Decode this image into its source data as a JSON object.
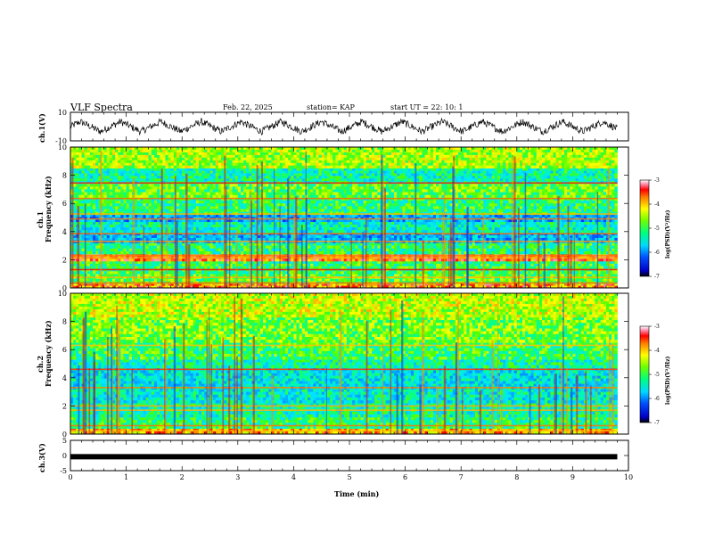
{
  "header": {
    "title": "VLF Spectra",
    "date": "Feb. 22, 2025",
    "station": "station= KAP",
    "start_ut": "start  UT =   22: 10: 1"
  },
  "colors": {
    "line": "#000000",
    "background": "#ffffff"
  },
  "chart_data": [
    {
      "type": "line",
      "name": "ch1-waveform",
      "ylabel": "ch.1(V)",
      "ylim": [
        -10,
        10
      ],
      "yticks": [
        10,
        -10
      ],
      "xlim": [
        0,
        10
      ],
      "x_end": 9.8,
      "description_values": {
        "mean": 0,
        "amplitude_slow": 3.5,
        "period_min": 0.72,
        "noise_amplitude": 2.5
      }
    },
    {
      "type": "heatmap",
      "name": "ch1-spectrogram",
      "ylabel": "Frequency (kHz)",
      "channel_label": "ch.1",
      "ylim": [
        0,
        10
      ],
      "yticks": [
        0,
        2,
        4,
        6,
        8,
        10
      ],
      "xlim": [
        0,
        10
      ],
      "x_end": 9.8,
      "bands_khz": [
        {
          "f0": 0.0,
          "f1": 0.3,
          "level": -3.6
        },
        {
          "f0": 0.3,
          "f1": 1.0,
          "level": -4.7
        },
        {
          "f0": 1.0,
          "f1": 1.9,
          "level": -4.9
        },
        {
          "f0": 1.9,
          "f1": 2.4,
          "level": -3.4
        },
        {
          "f0": 2.4,
          "f1": 3.2,
          "level": -5.0
        },
        {
          "f0": 3.2,
          "f1": 3.9,
          "level": -5.8
        },
        {
          "f0": 3.9,
          "f1": 4.7,
          "level": -5.3
        },
        {
          "f0": 4.7,
          "f1": 5.2,
          "level": -5.9
        },
        {
          "f0": 5.2,
          "f1": 6.4,
          "level": -5.0
        },
        {
          "f0": 6.4,
          "f1": 7.4,
          "level": -4.7
        },
        {
          "f0": 7.4,
          "f1": 8.5,
          "level": -5.2
        },
        {
          "f0": 8.5,
          "f1": 10.0,
          "level": -4.4
        }
      ],
      "lines_khz": [
        0.35,
        0.75,
        1.3,
        2.15,
        2.3,
        3.3,
        3.85,
        4.9,
        5.25,
        6.35,
        7.45
      ],
      "colorbar": {
        "label": "log(PSD)(V²/Hz)",
        "ticks": [
          -3,
          -4,
          -5,
          -6,
          -7
        ],
        "range": [
          -7,
          -3
        ]
      }
    },
    {
      "type": "heatmap",
      "name": "ch2-spectrogram",
      "ylabel": "Frequency (kHz)",
      "channel_label": "ch.2",
      "ylim": [
        0,
        10
      ],
      "yticks": [
        0,
        2,
        4,
        6,
        8,
        10
      ],
      "xlim": [
        0,
        10
      ],
      "x_end": 9.8,
      "bands_khz": [
        {
          "f0": 0.0,
          "f1": 0.4,
          "level": -3.8
        },
        {
          "f0": 0.4,
          "f1": 1.2,
          "level": -5.0
        },
        {
          "f0": 1.2,
          "f1": 2.2,
          "level": -5.2
        },
        {
          "f0": 2.2,
          "f1": 3.2,
          "level": -5.4
        },
        {
          "f0": 3.2,
          "f1": 4.7,
          "level": -5.5
        },
        {
          "f0": 4.7,
          "f1": 5.3,
          "level": -5.2
        },
        {
          "f0": 5.3,
          "f1": 6.5,
          "level": -4.9
        },
        {
          "f0": 6.5,
          "f1": 8.3,
          "level": -4.6
        },
        {
          "f0": 8.3,
          "f1": 10.0,
          "level": -4.3
        }
      ],
      "lines_khz": [
        0.25,
        0.6,
        1.7,
        2.0,
        3.3,
        4.6,
        6.3
      ],
      "colorbar": {
        "label": "log(PSD)(V²/Hz)",
        "ticks": [
          -3,
          -4,
          -5,
          -6,
          -7
        ],
        "range": [
          -7,
          -3
        ]
      }
    },
    {
      "type": "line",
      "name": "ch3-waveform",
      "ylabel": "ch.3(V)",
      "ylim": [
        -5,
        5
      ],
      "yticks": [
        5,
        0,
        -5
      ],
      "xlim": [
        0,
        10
      ],
      "x_end": 9.8,
      "constant_value": -0.4,
      "xlabel": "Time (min)",
      "xticks": [
        0,
        1,
        2,
        3,
        4,
        5,
        6,
        7,
        8,
        9,
        10
      ]
    }
  ]
}
